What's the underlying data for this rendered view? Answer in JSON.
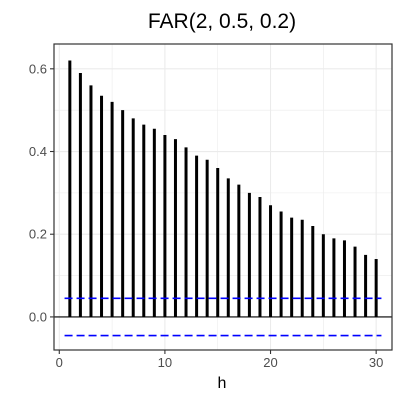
{
  "chart_data": {
    "type": "bar",
    "title": "FAR(2, 0.5, 0.2)",
    "xlabel": "h",
    "ylabel": "",
    "x": [
      1,
      2,
      3,
      4,
      5,
      6,
      7,
      8,
      9,
      10,
      11,
      12,
      13,
      14,
      15,
      16,
      17,
      18,
      19,
      20,
      21,
      22,
      23,
      24,
      25,
      26,
      27,
      28,
      29,
      30
    ],
    "values": [
      0.62,
      0.59,
      0.56,
      0.535,
      0.52,
      0.5,
      0.48,
      0.465,
      0.455,
      0.44,
      0.43,
      0.41,
      0.39,
      0.38,
      0.36,
      0.335,
      0.32,
      0.3,
      0.29,
      0.27,
      0.255,
      0.24,
      0.235,
      0.22,
      0.2,
      0.19,
      0.185,
      0.17,
      0.15,
      0.14
    ],
    "xlim": [
      -0.5,
      31.5
    ],
    "ylim": [
      -0.08,
      0.66
    ],
    "xticks": [
      0,
      10,
      20,
      30
    ],
    "yticks": [
      0.0,
      0.2,
      0.4,
      0.6
    ],
    "ytick_labels": [
      "0.0",
      "0.2",
      "0.4",
      "0.6"
    ],
    "xtick_labels": [
      "0",
      "10",
      "20",
      "30"
    ],
    "confidence_bounds": [
      0.045,
      -0.045
    ],
    "grid": true,
    "colors": {
      "bars": "#000000",
      "bounds": "#0000ff",
      "grid": "#ebebeb",
      "panel_border": "#333333"
    }
  }
}
